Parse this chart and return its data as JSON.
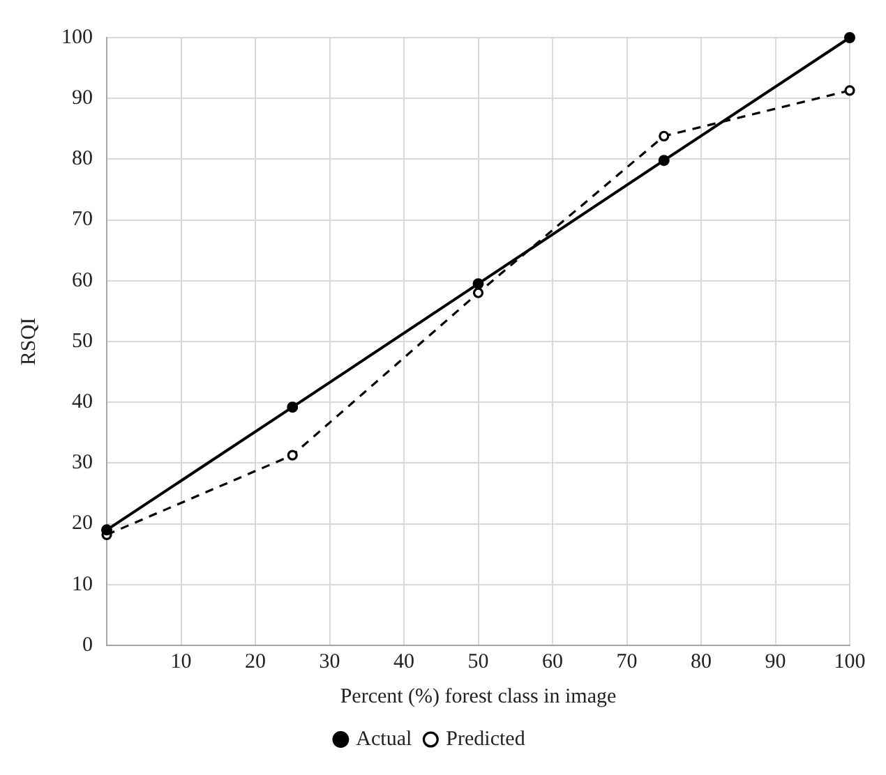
{
  "chart_data": {
    "type": "line",
    "xlabel": "Percent (%) forest class in image",
    "ylabel": "RSQI",
    "x": [
      0,
      25,
      50,
      75,
      100
    ],
    "series": [
      {
        "name": "Actual",
        "color": "#000000",
        "values": [
          19,
          39.2,
          59.5,
          79.8,
          100
        ],
        "line_style": "solid"
      },
      {
        "name": "Predicted",
        "color": "#000000",
        "values": [
          18.2,
          31.3,
          58,
          83.8,
          91.3
        ],
        "line_style": "dashed"
      }
    ],
    "xlim": [
      0,
      100
    ],
    "xticks": [
      10,
      20,
      30,
      40,
      50,
      60,
      70,
      80,
      90,
      100
    ],
    "ylim": [
      0,
      100
    ],
    "yticks": [
      0,
      10,
      20,
      30,
      40,
      50,
      60,
      70,
      80,
      90,
      100
    ],
    "grid": true,
    "legend": "bottom",
    "marker": "circle"
  }
}
